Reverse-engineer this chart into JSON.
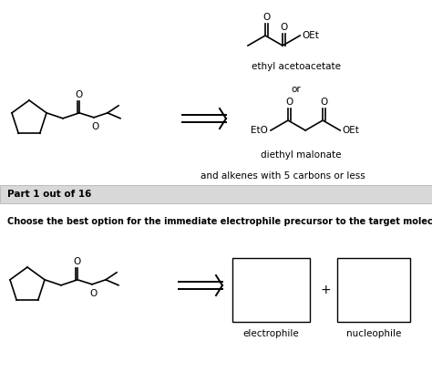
{
  "bg_color": "#ffffff",
  "part_bar_color": "#d8d8d8",
  "part_text": "Part 1 out of 16",
  "question_text": "Choose the best option for the immediate electrophile precursor to the target molecule.",
  "ethyl_acetoacetate_label": "ethyl acetoacetate",
  "or_text": "or",
  "diethyl_malonate_label": "diethyl malonate",
  "alkenes_text": "and alkenes with 5 carbons or less",
  "electrophile_label": "electrophile",
  "nucleophile_label": "nucleophile",
  "plus_text": "+",
  "OEt_text": "OEt",
  "EtO_text": "EtO",
  "O_text": "O"
}
